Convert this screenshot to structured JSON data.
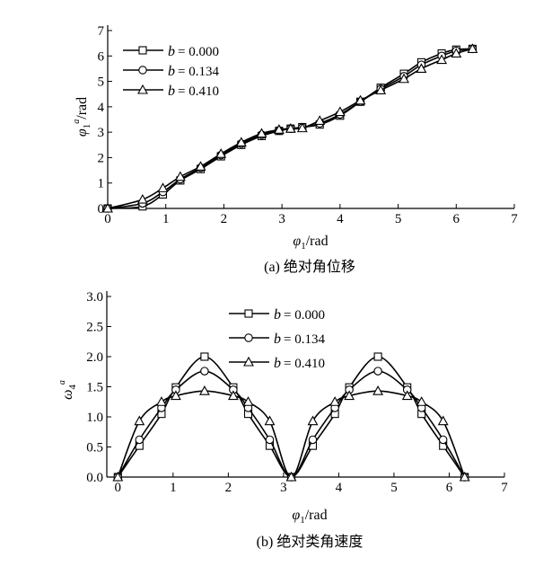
{
  "chart_data": [
    {
      "type": "line",
      "caption": "(a) 绝对角位移",
      "xlabel": "φ1/rad",
      "ylabel": "φ1a/rad",
      "xlim": [
        0,
        7
      ],
      "ylim": [
        0,
        7
      ],
      "xticks": [
        0,
        1,
        2,
        3,
        4,
        5,
        6,
        7
      ],
      "yticks": [
        0,
        1,
        2,
        3,
        4,
        5,
        6,
        7
      ],
      "legend_position": "top-left",
      "x": [
        0,
        0.6,
        0.95,
        1.25,
        1.6,
        1.95,
        2.3,
        2.65,
        2.95,
        3.15,
        3.35,
        3.65,
        4.0,
        4.35,
        4.7,
        5.1,
        5.4,
        5.75,
        6.0,
        6.28
      ],
      "series": [
        {
          "name": "b = 0.000",
          "marker": "square",
          "values": [
            0,
            0.08,
            0.55,
            1.1,
            1.55,
            2.05,
            2.5,
            2.85,
            3.05,
            3.14,
            3.2,
            3.3,
            3.65,
            4.2,
            4.75,
            5.3,
            5.75,
            6.1,
            6.25,
            6.28
          ]
        },
        {
          "name": "b = 0.134",
          "marker": "circle",
          "values": [
            0,
            0.2,
            0.65,
            1.15,
            1.6,
            2.1,
            2.55,
            2.9,
            3.07,
            3.14,
            3.18,
            3.35,
            3.7,
            4.2,
            4.7,
            5.2,
            5.65,
            6.0,
            6.2,
            6.28
          ]
        },
        {
          "name": "b = 0.410",
          "marker": "triangle",
          "values": [
            0,
            0.35,
            0.8,
            1.25,
            1.65,
            2.15,
            2.6,
            2.95,
            3.1,
            3.14,
            3.16,
            3.45,
            3.8,
            4.25,
            4.65,
            5.1,
            5.5,
            5.85,
            6.1,
            6.28
          ]
        }
      ],
      "legend_labels": [
        "= 0.000",
        "= 0.134",
        "= 0.410"
      ]
    },
    {
      "type": "line",
      "caption": "(b) 绝对类角速度",
      "xlabel": "φ1/rad",
      "ylabel": "ω4a",
      "xlim": [
        -0.2,
        7
      ],
      "ylim": [
        0,
        3.0
      ],
      "xticks": [
        0,
        1,
        2,
        3,
        4,
        5,
        6,
        7
      ],
      "yticks": [
        "0.0",
        "0.5",
        "1.0",
        "1.5",
        "2.0",
        "2.5",
        "3.0"
      ],
      "legend_position": "top-center",
      "x": [
        0,
        0.39,
        0.79,
        1.05,
        1.57,
        2.09,
        2.36,
        2.75,
        3.14,
        3.53,
        3.93,
        4.19,
        4.71,
        5.24,
        5.5,
        5.89,
        6.28
      ],
      "series": [
        {
          "name": "b = 0.000",
          "marker": "square",
          "values": [
            0,
            0.52,
            1.05,
            1.49,
            2.0,
            1.49,
            1.05,
            0.52,
            0,
            0.52,
            1.05,
            1.49,
            2.0,
            1.49,
            1.05,
            0.52,
            0
          ]
        },
        {
          "name": "b = 0.134",
          "marker": "circle",
          "values": [
            0,
            0.62,
            1.15,
            1.45,
            1.76,
            1.45,
            1.15,
            0.62,
            0,
            0.62,
            1.15,
            1.45,
            1.76,
            1.45,
            1.15,
            0.62,
            0
          ]
        },
        {
          "name": "b = 0.410",
          "marker": "triangle",
          "values": [
            0,
            0.93,
            1.25,
            1.35,
            1.43,
            1.35,
            1.25,
            0.93,
            0,
            0.93,
            1.25,
            1.35,
            1.43,
            1.35,
            1.25,
            0.93,
            0
          ]
        }
      ],
      "legend_labels": [
        "= 0.000",
        "= 0.134",
        "= 0.410"
      ]
    }
  ]
}
